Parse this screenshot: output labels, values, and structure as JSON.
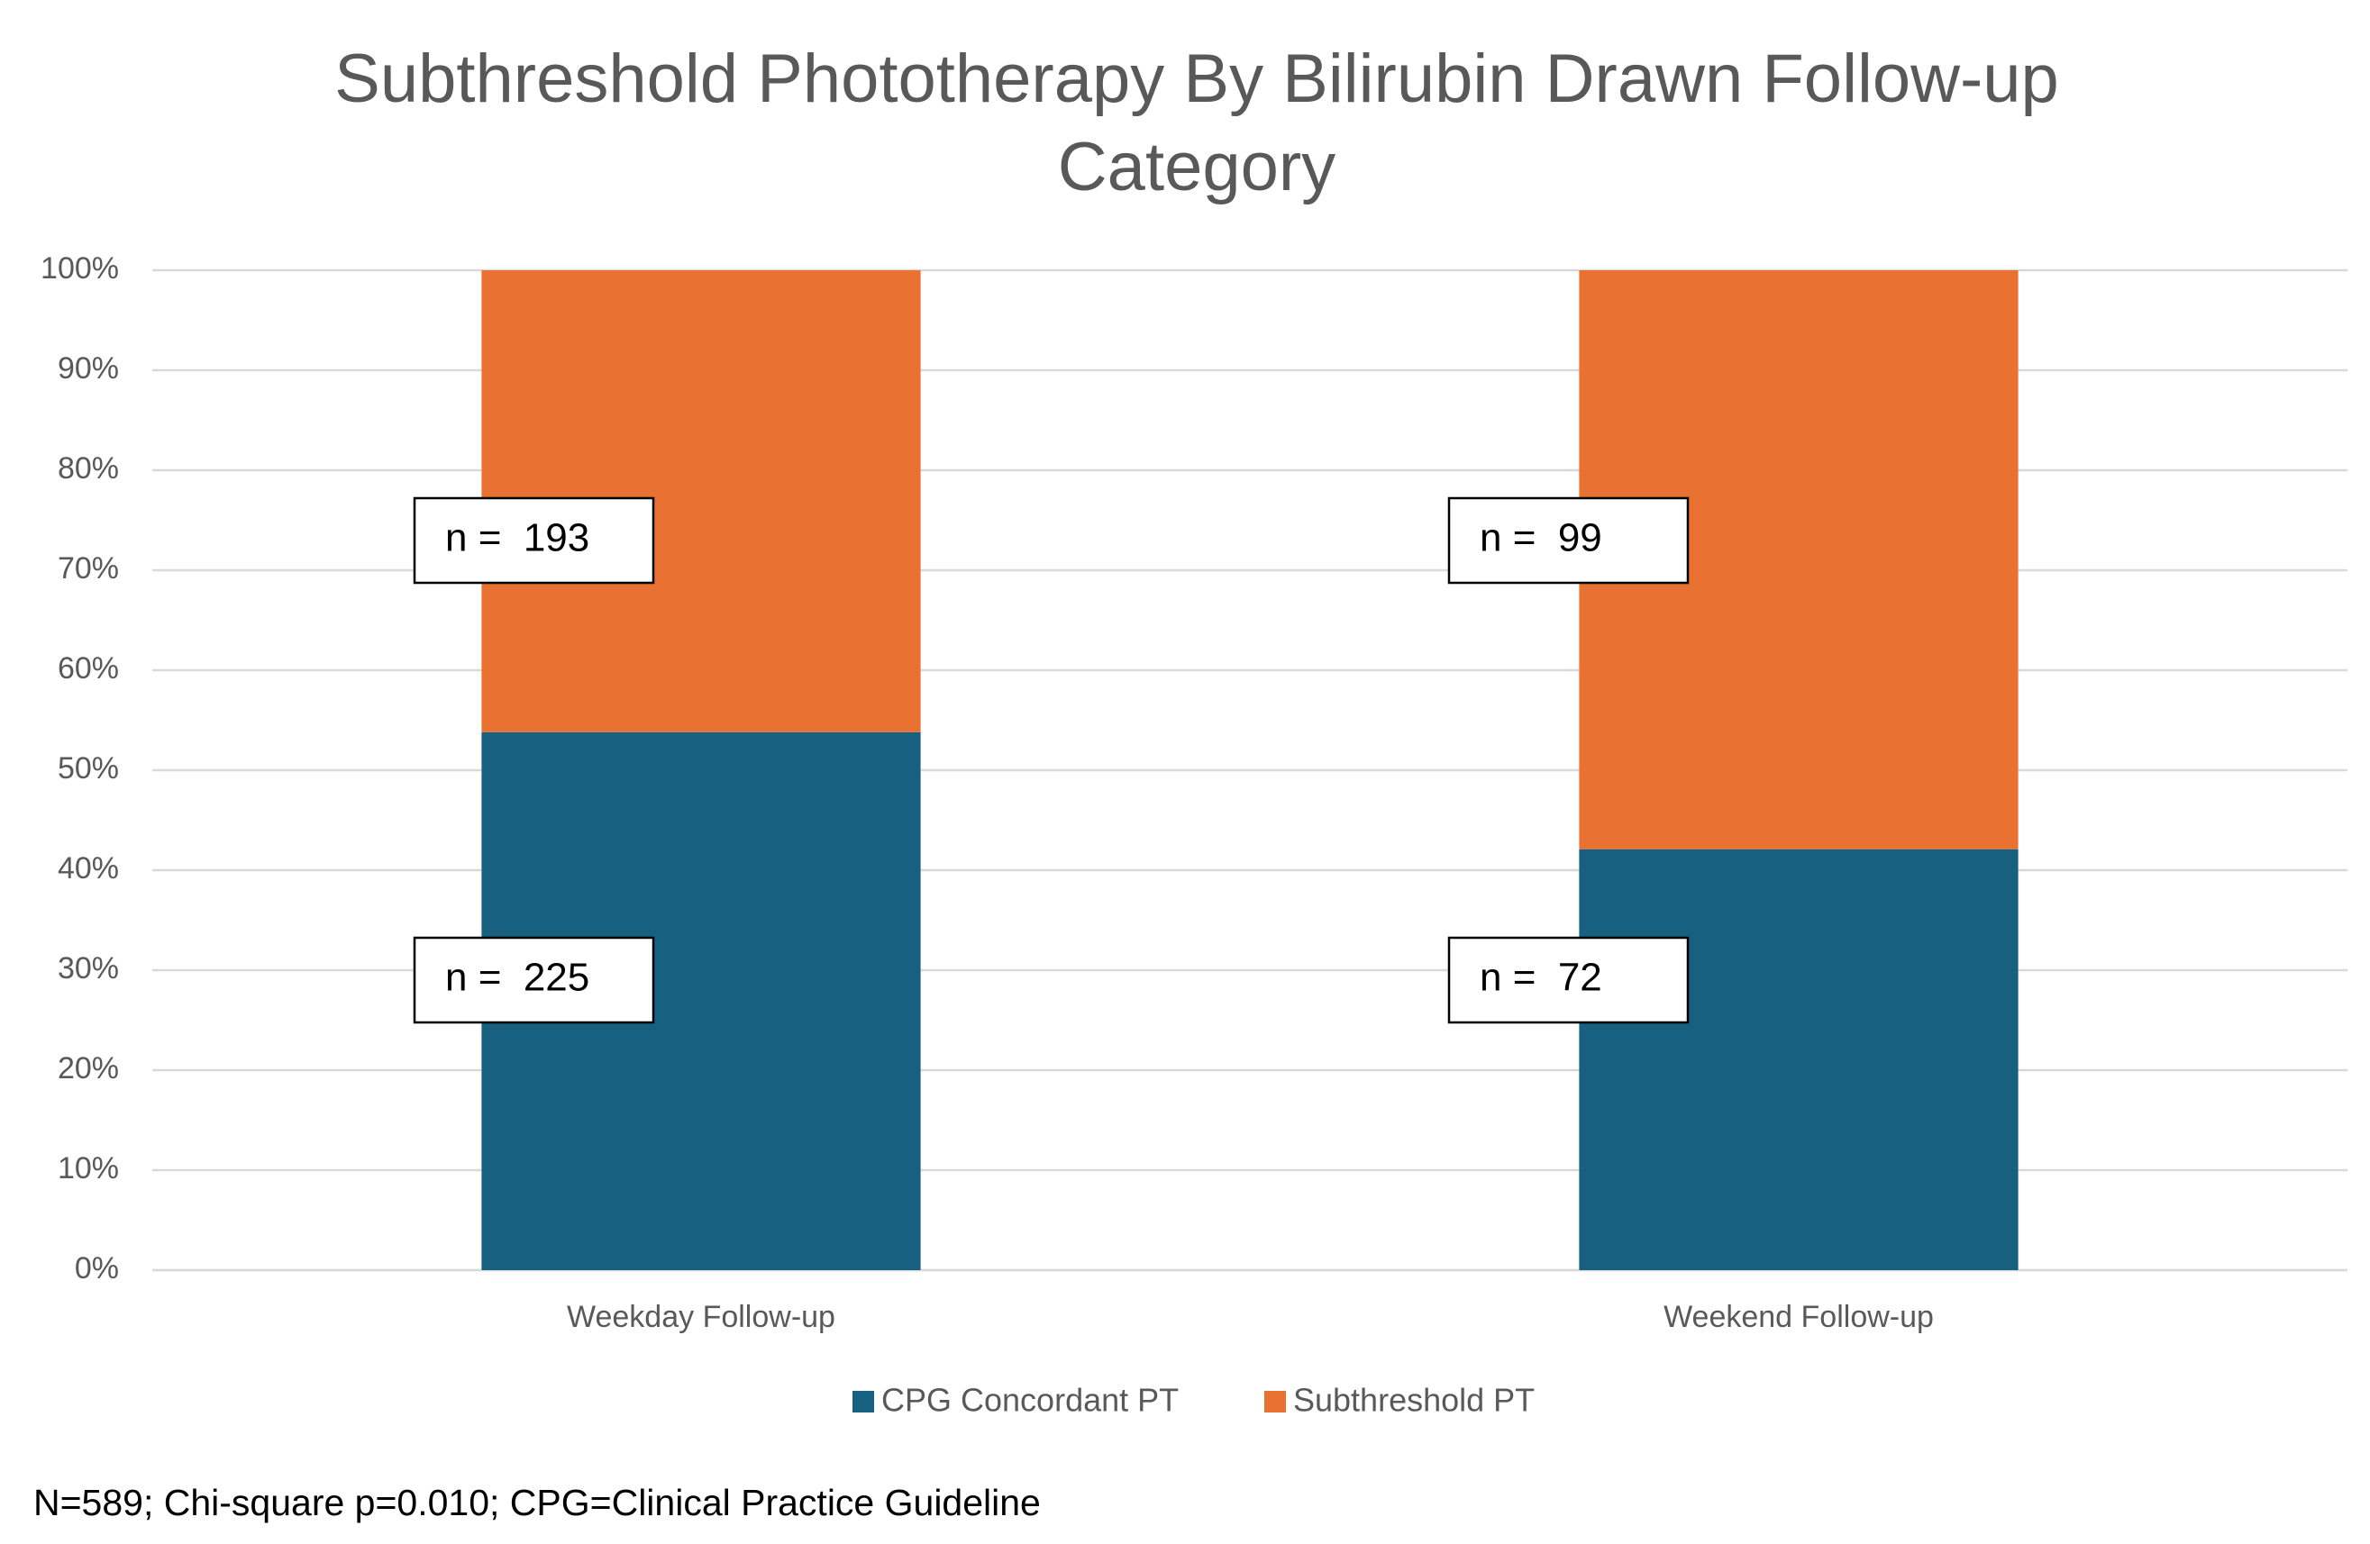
{
  "chart_data": {
    "type": "stacked_bar",
    "title": "Subthreshold Phototherapy By Bilirubin Drawn Follow-up",
    "title_line2": "Category",
    "categories": [
      "Weekday Follow-up",
      "Weekend Follow-up"
    ],
    "series": [
      {
        "name": "CPG Concordant PT",
        "color": "#17607f",
        "values": [
          53.8,
          42.1
        ],
        "annotations": [
          "n =  225",
          "n =  72"
        ]
      },
      {
        "name": "Subthreshold PT",
        "color": "#e97132",
        "values": [
          46.2,
          57.9
        ],
        "annotations": [
          "n =  193",
          "n =  99"
        ]
      }
    ],
    "ylim": [
      0,
      100
    ],
    "yticks": [
      {
        "value": 0,
        "label": "0%"
      },
      {
        "value": 10,
        "label": "10%"
      },
      {
        "value": 20,
        "label": "20%"
      },
      {
        "value": 30,
        "label": "30%"
      },
      {
        "value": 40,
        "label": "40%"
      },
      {
        "value": 50,
        "label": "50%"
      },
      {
        "value": 60,
        "label": "60%"
      },
      {
        "value": 70,
        "label": "70%"
      },
      {
        "value": 80,
        "label": "80%"
      },
      {
        "value": 90,
        "label": "90%"
      },
      {
        "value": 100,
        "label": "100%"
      }
    ],
    "grid": true,
    "legend": "bottom",
    "footnote": "N=589; Chi-square p=0.010; CPG=Clinical Practice Guideline"
  }
}
